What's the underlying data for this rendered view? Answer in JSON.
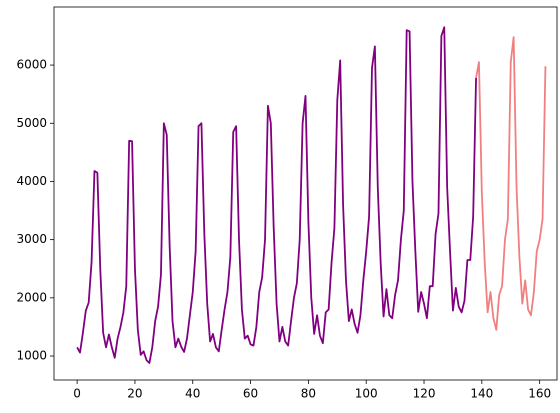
{
  "chart_data": {
    "type": "line",
    "xlim": [
      -8,
      166
    ],
    "ylim": [
      588,
      6998
    ],
    "xticks": [
      0,
      20,
      40,
      60,
      80,
      100,
      120,
      140,
      160
    ],
    "yticks": [
      1000,
      2000,
      3000,
      4000,
      5000,
      6000
    ],
    "series": [
      {
        "color": "#800080",
        "x": [
          0,
          1,
          2,
          3,
          4,
          5,
          6,
          7,
          8,
          9,
          10,
          11,
          12,
          13,
          14,
          15,
          16,
          17,
          18,
          19,
          20,
          21,
          22,
          23,
          24,
          25,
          26,
          27,
          28,
          29,
          30,
          31,
          32,
          33,
          34,
          35,
          36,
          37,
          38,
          39,
          40,
          41,
          42,
          43,
          44,
          45,
          46,
          47,
          48,
          49,
          50,
          51,
          52,
          53,
          54,
          55,
          56,
          57,
          58,
          59,
          60,
          61,
          62,
          63,
          64,
          65,
          66,
          67,
          68,
          69,
          70,
          71,
          72,
          73,
          74,
          75,
          76,
          77,
          78,
          79,
          80,
          81,
          82,
          83,
          84,
          85,
          86,
          87,
          88,
          89,
          90,
          91,
          92,
          93,
          94,
          95,
          96,
          97,
          98,
          99,
          100,
          101,
          102,
          103,
          104,
          105,
          106,
          107,
          108,
          109,
          110,
          111,
          112,
          113,
          114,
          115,
          116,
          117,
          118,
          119,
          120,
          121,
          122,
          123,
          124,
          125,
          126,
          127,
          128,
          129,
          130,
          131,
          132,
          133,
          134,
          135,
          136,
          137,
          138
        ],
        "values": [
          1150,
          1060,
          1400,
          1780,
          1920,
          2620,
          4180,
          4150,
          2500,
          1400,
          1150,
          1370,
          1150,
          970,
          1300,
          1500,
          1750,
          2200,
          4700,
          4690,
          2500,
          1450,
          1020,
          1080,
          930,
          880,
          1150,
          1600,
          1850,
          2400,
          5000,
          4800,
          2900,
          1600,
          1150,
          1300,
          1160,
          1070,
          1300,
          1700,
          2100,
          2800,
          4950,
          5000,
          3100,
          1900,
          1250,
          1380,
          1150,
          1080,
          1450,
          1800,
          2100,
          2700,
          4850,
          4950,
          3000,
          1800,
          1300,
          1350,
          1200,
          1180,
          1500,
          2100,
          2350,
          3000,
          5300,
          5000,
          3200,
          1900,
          1250,
          1500,
          1250,
          1180,
          1600,
          2000,
          2250,
          3000,
          5000,
          5470,
          3300,
          2000,
          1380,
          1700,
          1350,
          1220,
          1750,
          1800,
          2600,
          3200,
          5400,
          6080,
          3600,
          2300,
          1600,
          1800,
          1550,
          1400,
          1700,
          2300,
          2800,
          3400,
          5950,
          6320,
          3900,
          2600,
          1680,
          2150,
          1700,
          1650,
          2050,
          2300,
          3000,
          3500,
          6600,
          6580,
          4000,
          2800,
          1760,
          2100,
          1900,
          1650,
          2200,
          2200,
          3100,
          3450,
          6500,
          6650,
          3900,
          2800,
          1780,
          2170,
          1850,
          1750,
          1950,
          2650,
          2650,
          3400,
          5780
        ]
      },
      {
        "color": "#f08080",
        "x": [
          138,
          139,
          140,
          141,
          142,
          143,
          144,
          145,
          146,
          147,
          148,
          149,
          150,
          151,
          152,
          153,
          154,
          155,
          156,
          157,
          158,
          159,
          160,
          161,
          162
        ],
        "values": [
          5780,
          6050,
          3800,
          2600,
          1750,
          2100,
          1650,
          1450,
          2050,
          2200,
          3000,
          3350,
          6050,
          6480,
          3900,
          2700,
          1900,
          2300,
          1800,
          1700,
          2100,
          2800,
          3000,
          3350,
          5980
        ]
      }
    ]
  }
}
